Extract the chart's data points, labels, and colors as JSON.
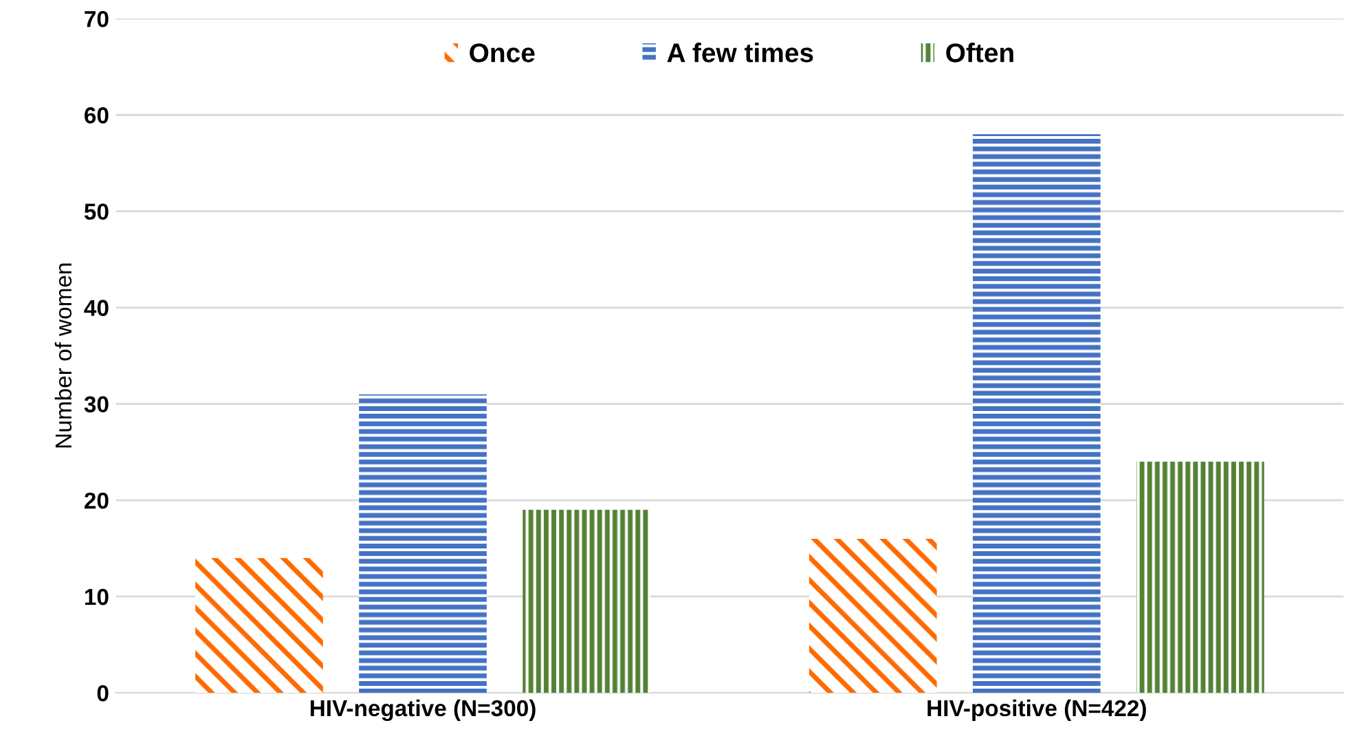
{
  "chart_data": {
    "type": "bar",
    "ylabel": "Number of women",
    "categories": [
      "HIV-negative (N=300)",
      "HIV-positive (N=422)"
    ],
    "series": [
      {
        "name": "Once",
        "color": "#ff6a00",
        "values": [
          14,
          16
        ]
      },
      {
        "name": "A few times",
        "color": "#4472c4",
        "values": [
          31,
          58
        ]
      },
      {
        "name": "Often",
        "color": "#548235",
        "values": [
          19,
          24
        ]
      }
    ],
    "ylim": [
      0,
      70
    ],
    "yticks": [
      0,
      10,
      20,
      30,
      40,
      50,
      60,
      70
    ],
    "grid": "y",
    "legend": "top"
  }
}
